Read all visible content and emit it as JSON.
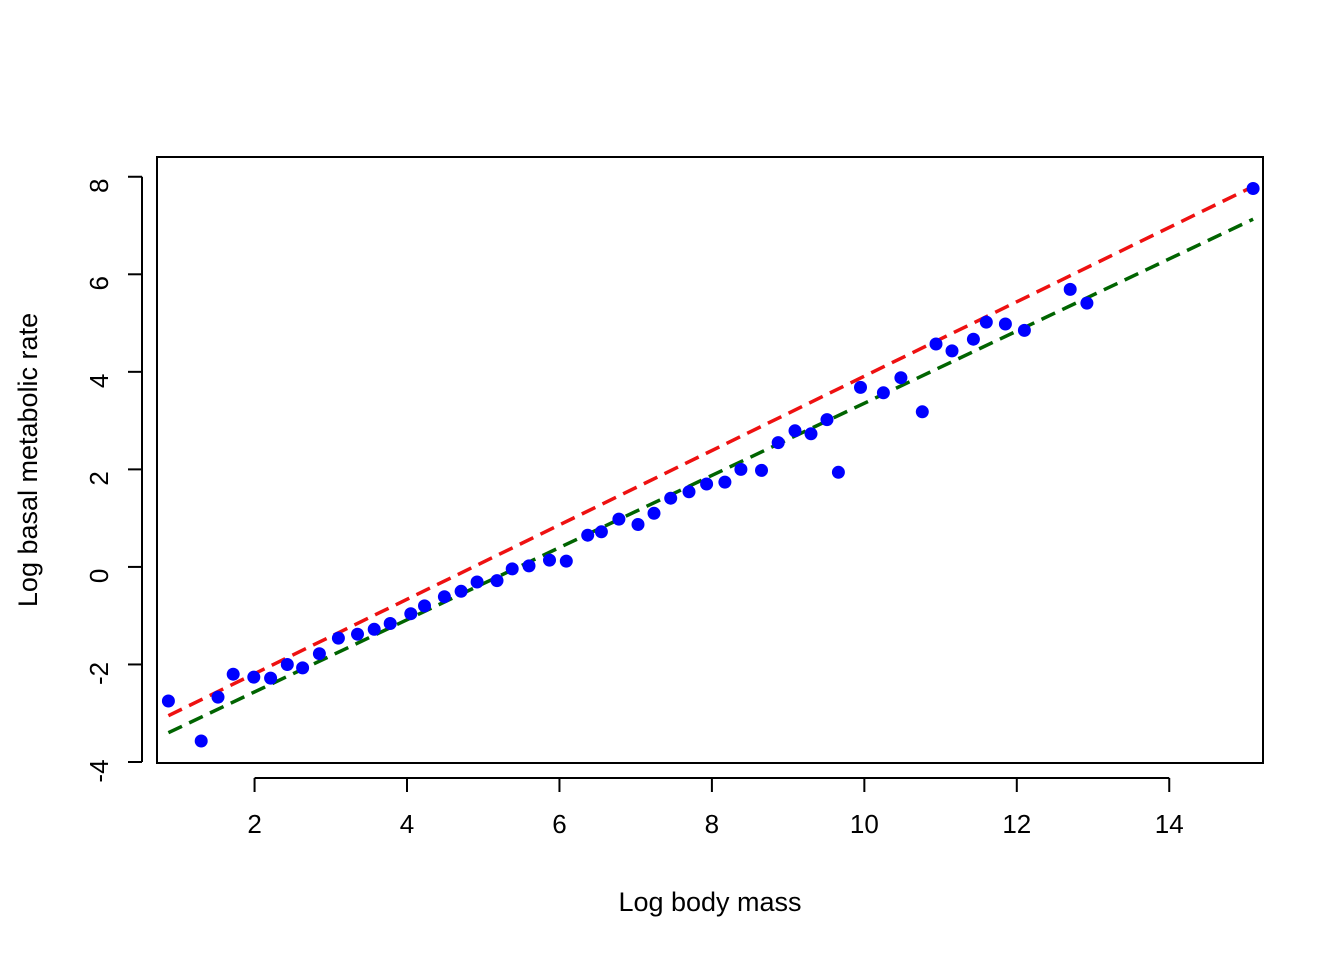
{
  "chart_data": {
    "type": "scatter",
    "title": "",
    "xlabel": "Log body mass",
    "ylabel": "Log basal metabolic rate",
    "xlim": [
      0.72,
      15.23
    ],
    "ylim": [
      -4,
      8.2
    ],
    "x_ticks": [
      2,
      4,
      6,
      8,
      10,
      12,
      14
    ],
    "y_ticks": [
      -4,
      -2,
      0,
      2,
      4,
      6,
      8
    ],
    "grid": false,
    "legend": "none",
    "colors": {
      "points": "#0000ff",
      "fit_red": "#ee1111",
      "fit_green": "#006400"
    },
    "series": [
      {
        "type": "scatter",
        "x": [
          0.87,
          1.3,
          1.52,
          1.72,
          1.99,
          2.21,
          2.43,
          2.63,
          2.85,
          3.1,
          3.35,
          3.57,
          3.78,
          4.05,
          4.23,
          4.49,
          4.71,
          4.92,
          5.18,
          5.38,
          5.6,
          5.87,
          6.09,
          6.37,
          6.55,
          6.78,
          7.03,
          7.24,
          7.46,
          7.7,
          7.93,
          8.17,
          8.38,
          8.65,
          8.87,
          9.09,
          9.3,
          9.51,
          9.66,
          9.95,
          10.25,
          10.48,
          10.76,
          10.94,
          11.15,
          11.43,
          11.6,
          11.85,
          12.1,
          12.7,
          12.92,
          15.1
        ],
        "y": [
          -2.75,
          -3.57,
          -2.67,
          -2.2,
          -2.26,
          -2.28,
          -2.0,
          -2.07,
          -1.78,
          -1.46,
          -1.38,
          -1.28,
          -1.16,
          -0.96,
          -0.8,
          -0.61,
          -0.5,
          -0.31,
          -0.28,
          -0.04,
          0.02,
          0.14,
          0.12,
          0.65,
          0.72,
          0.98,
          0.87,
          1.1,
          1.41,
          1.54,
          1.7,
          1.74,
          2.0,
          1.98,
          2.55,
          2.79,
          2.73,
          3.02,
          1.94,
          3.68,
          3.57,
          3.88,
          3.18,
          4.57,
          4.43,
          4.67,
          5.02,
          4.98,
          4.85,
          5.69,
          5.41,
          7.76
        ]
      },
      {
        "type": "line",
        "style": "dashed",
        "x": [
          0.87,
          15.1
        ],
        "y": [
          -3.05,
          7.8
        ]
      },
      {
        "type": "line",
        "style": "dashed",
        "x": [
          0.87,
          15.1
        ],
        "y": [
          -3.4,
          7.13
        ]
      }
    ]
  }
}
